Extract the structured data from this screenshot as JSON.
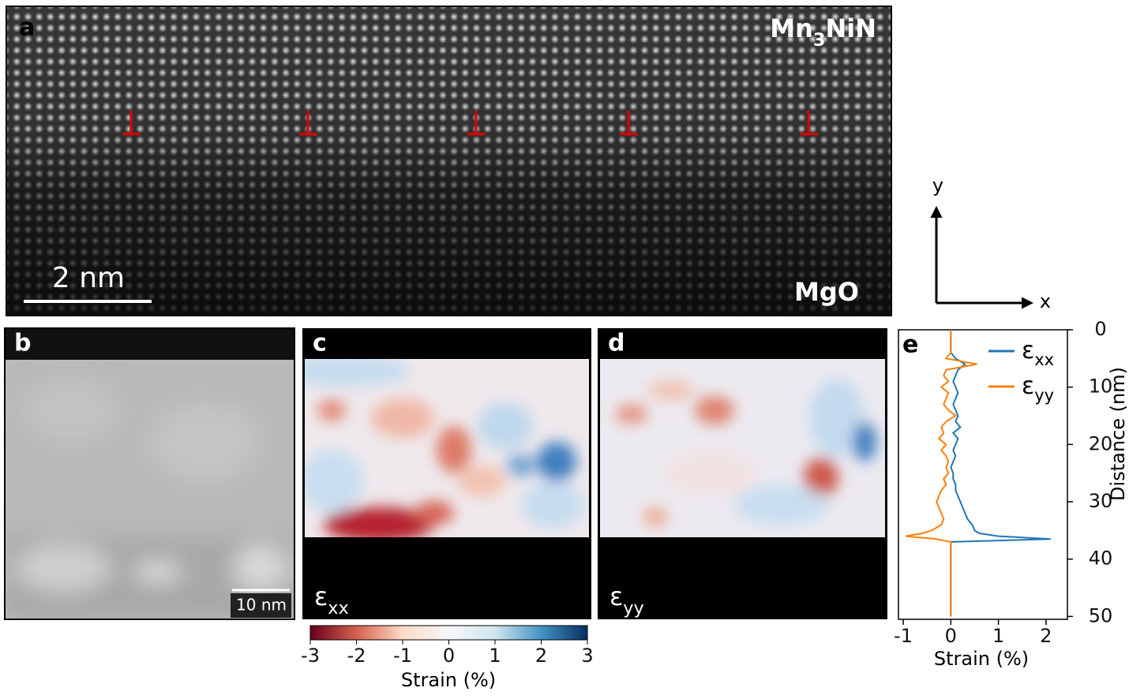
{
  "panels": {
    "a": {
      "label": "a",
      "film": "Mn3NiN",
      "substrate": "MgO",
      "scale_bar": "2 nm",
      "axis_y": "y",
      "axis_x": "x"
    },
    "b": {
      "label": "b",
      "scale_bar": "10 nm"
    },
    "c": {
      "label": "c",
      "quantity": "εxx"
    },
    "d": {
      "label": "d",
      "quantity": "εyy"
    },
    "colorbar": {
      "lim": [
        -3,
        3
      ],
      "ticks": [
        -3,
        -2,
        -1,
        0,
        1,
        2,
        3
      ],
      "label": "Strain (%)",
      "colors": [
        "#67001f",
        "#d6604d",
        "#fddbc7",
        "#f7f7f7",
        "#d1e5f0",
        "#4393c3",
        "#053061"
      ]
    }
  },
  "chart_data": {
    "type": "line",
    "label": "e",
    "xlabel": "Strain (%)",
    "ylabel": "Distance (nm)",
    "xlim": [
      -1.1,
      2.45
    ],
    "xticks": [
      -1,
      0,
      1,
      2
    ],
    "ylim": [
      0,
      50.5
    ],
    "yticks": [
      0,
      10,
      20,
      30,
      40,
      50
    ],
    "y_inverted": true,
    "legend": "upper right",
    "y": [
      0,
      1,
      2,
      3,
      4,
      5,
      6,
      7,
      8,
      9,
      10,
      11,
      12,
      13,
      14,
      15,
      16,
      17,
      18,
      19,
      20,
      21,
      22,
      23,
      24,
      25,
      26,
      27,
      28,
      29,
      30,
      31,
      32,
      33,
      34,
      35,
      35.5,
      36,
      36.5,
      37,
      38,
      39,
      40,
      41,
      42,
      43,
      44,
      45,
      46,
      47,
      48,
      49,
      50
    ],
    "series": [
      {
        "name": "εxx",
        "color": "#1f77b4",
        "values": [
          0,
          0,
          0,
          0,
          0,
          0.1,
          0.3,
          0.15,
          0.1,
          0.05,
          0.1,
          0.15,
          0.1,
          0.05,
          0.1,
          0.15,
          0.1,
          0.2,
          0.05,
          0.15,
          0.1,
          0.05,
          0.1,
          0.05,
          0,
          0.05,
          0.05,
          0.1,
          0.1,
          0.15,
          0.2,
          0.25,
          0.3,
          0.35,
          0.45,
          0.5,
          0.6,
          1.0,
          2.1,
          0,
          0,
          0,
          0,
          0,
          0,
          0,
          0,
          0,
          0,
          0,
          0,
          0,
          0
        ]
      },
      {
        "name": "εyy",
        "color": "#ff7f0e",
        "values": [
          0,
          0,
          0,
          0,
          0,
          -0.1,
          0.55,
          -0.1,
          -0.15,
          -0.05,
          -0.2,
          -0.05,
          -0.1,
          -0.15,
          -0.05,
          0.1,
          -0.1,
          -0.2,
          -0.15,
          -0.25,
          -0.1,
          -0.2,
          -0.1,
          -0.05,
          -0.1,
          -0.05,
          -0.15,
          -0.1,
          -0.2,
          -0.25,
          -0.3,
          -0.25,
          -0.2,
          -0.15,
          -0.2,
          -0.4,
          -0.6,
          -0.95,
          -0.3,
          0,
          0,
          0,
          0,
          0,
          0,
          0,
          0,
          0,
          0,
          0,
          0,
          0,
          0
        ]
      }
    ]
  }
}
